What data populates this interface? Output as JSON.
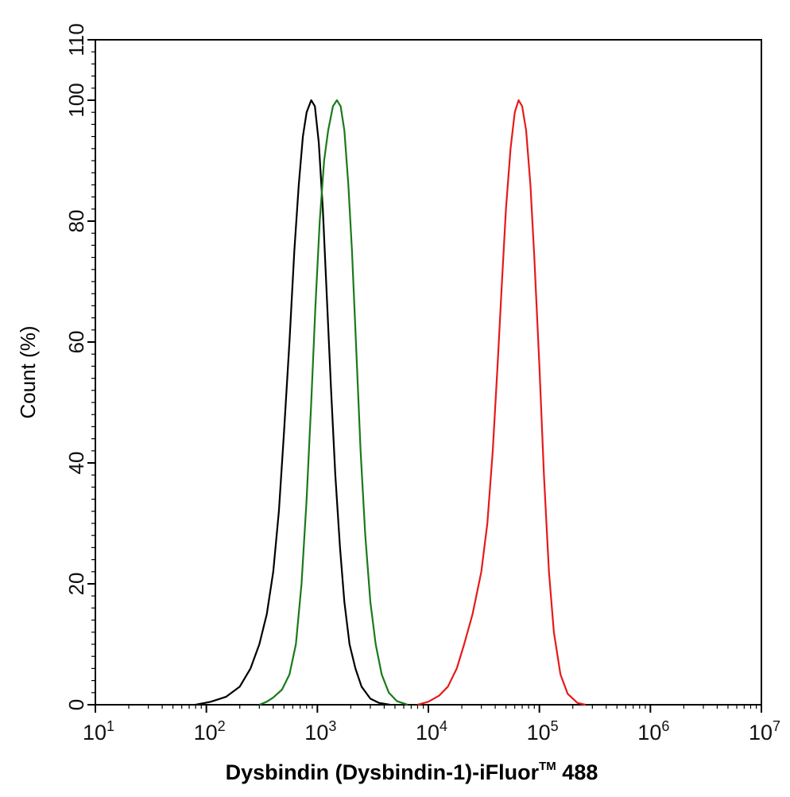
{
  "chart_data": {
    "type": "line",
    "title": "",
    "xlabel": "Dysbindin (Dysbindin-1)-iFluor",
    "xlabel_superscript": "TM",
    "xlabel_suffix": " 488",
    "ylabel": "Count  (%)",
    "x_scale": "log",
    "xlim": [
      10,
      10000000
    ],
    "ylim": [
      0,
      110
    ],
    "x_ticks": [
      {
        "base": "10",
        "exp": "1",
        "value": 10
      },
      {
        "base": "10",
        "exp": "2",
        "value": 100
      },
      {
        "base": "10",
        "exp": "3",
        "value": 1000
      },
      {
        "base": "10",
        "exp": "4",
        "value": 10000
      },
      {
        "base": "10",
        "exp": "5",
        "value": 100000
      },
      {
        "base": "10",
        "exp": "6",
        "value": 1000000
      },
      {
        "base": "10",
        "exp": "7",
        "value": 10000000
      }
    ],
    "y_ticks": [
      "0",
      "20",
      "40",
      "60",
      "80",
      "100",
      "110"
    ],
    "grid": false,
    "legend": "none",
    "series": [
      {
        "color": "#000000",
        "points": [
          [
            80,
            0
          ],
          [
            110,
            0.5
          ],
          [
            150,
            1.3
          ],
          [
            200,
            3
          ],
          [
            250,
            6
          ],
          [
            300,
            10
          ],
          [
            350,
            15
          ],
          [
            400,
            22
          ],
          [
            450,
            32
          ],
          [
            500,
            45
          ],
          [
            560,
            60
          ],
          [
            620,
            75
          ],
          [
            680,
            86
          ],
          [
            740,
            94
          ],
          [
            800,
            98
          ],
          [
            880,
            100
          ],
          [
            950,
            99
          ],
          [
            1030,
            93
          ],
          [
            1120,
            82
          ],
          [
            1220,
            67
          ],
          [
            1330,
            52
          ],
          [
            1450,
            38
          ],
          [
            1600,
            26
          ],
          [
            1750,
            17
          ],
          [
            1950,
            10
          ],
          [
            2200,
            6
          ],
          [
            2500,
            3
          ],
          [
            3000,
            1
          ],
          [
            3600,
            0.3
          ],
          [
            4500,
            0
          ]
        ]
      },
      {
        "color": "#1a7a1a",
        "points": [
          [
            300,
            0
          ],
          [
            350,
            0.5
          ],
          [
            400,
            1.2
          ],
          [
            480,
            2.5
          ],
          [
            560,
            5
          ],
          [
            640,
            10
          ],
          [
            720,
            20
          ],
          [
            800,
            34
          ],
          [
            880,
            50
          ],
          [
            960,
            66
          ],
          [
            1050,
            80
          ],
          [
            1150,
            90
          ],
          [
            1250,
            95
          ],
          [
            1380,
            99
          ],
          [
            1500,
            100
          ],
          [
            1620,
            99
          ],
          [
            1750,
            95
          ],
          [
            1900,
            86
          ],
          [
            2050,
            75
          ],
          [
            2250,
            58
          ],
          [
            2450,
            42
          ],
          [
            2700,
            28
          ],
          [
            3000,
            17
          ],
          [
            3350,
            10
          ],
          [
            3800,
            5
          ],
          [
            4400,
            2
          ],
          [
            5200,
            0.6
          ],
          [
            6500,
            0
          ]
        ]
      },
      {
        "color": "#e51a1a",
        "points": [
          [
            8000,
            0
          ],
          [
            10000,
            0.5
          ],
          [
            12500,
            1.5
          ],
          [
            15000,
            3
          ],
          [
            18000,
            6
          ],
          [
            21000,
            10
          ],
          [
            25000,
            15
          ],
          [
            30000,
            22
          ],
          [
            34000,
            30
          ],
          [
            38000,
            42
          ],
          [
            42000,
            56
          ],
          [
            46000,
            70
          ],
          [
            50000,
            82
          ],
          [
            55000,
            92
          ],
          [
            60000,
            98
          ],
          [
            65000,
            100
          ],
          [
            70000,
            99
          ],
          [
            76000,
            95
          ],
          [
            83000,
            86
          ],
          [
            90000,
            74
          ],
          [
            100000,
            56
          ],
          [
            110000,
            38
          ],
          [
            122000,
            22
          ],
          [
            135000,
            12
          ],
          [
            155000,
            5
          ],
          [
            180000,
            1.8
          ],
          [
            220000,
            0.3
          ],
          [
            260000,
            0
          ]
        ]
      }
    ]
  }
}
